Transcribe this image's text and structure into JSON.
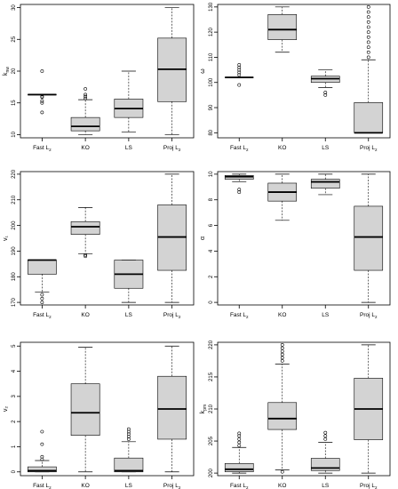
{
  "box_fill": "#d3d3d3",
  "chart_data": [
    {
      "type": "box",
      "ylabel": "k_nw",
      "ylim": [
        9.5,
        30.5
      ],
      "yticks": [
        10,
        15,
        20,
        25,
        30
      ],
      "categories": [
        "Fast L2",
        "KO",
        "LS",
        "Proj L2"
      ],
      "boxes": [
        {
          "whisker_low": 16.3,
          "q1": 16.3,
          "median": 16.3,
          "q3": 16.3,
          "whisker_high": 16.3,
          "outliers": [
            13.5,
            15,
            15.3,
            15.9,
            16.0,
            20.0
          ]
        },
        {
          "whisker_low": 10.0,
          "q1": 10.6,
          "median": 11.3,
          "q3": 12.7,
          "whisker_high": 15.5,
          "outliers": [
            15.7,
            16.0,
            16.3,
            17.2
          ]
        },
        {
          "whisker_low": 10.4,
          "q1": 12.7,
          "median": 14.1,
          "q3": 15.6,
          "whisker_high": 20.0,
          "outliers": []
        },
        {
          "whisker_low": 10.0,
          "q1": 15.2,
          "median": 20.3,
          "q3": 25.2,
          "whisker_high": 30.0,
          "outliers": []
        }
      ]
    },
    {
      "type": "box",
      "ylabel": "ω",
      "ylim": [
        78,
        131
      ],
      "yticks": [
        80,
        90,
        100,
        110,
        120,
        130
      ],
      "categories": [
        "Fast L2",
        "KO",
        "LS",
        "Proj L2"
      ],
      "boxes": [
        {
          "whisker_low": 102.0,
          "q1": 102.0,
          "median": 102.0,
          "q3": 102.0,
          "whisker_high": 102.0,
          "outliers": [
            99,
            103,
            104,
            105,
            106,
            107
          ]
        },
        {
          "whisker_low": 112.0,
          "q1": 117.0,
          "median": 121.0,
          "q3": 127.0,
          "whisker_high": 130.0,
          "outliers": []
        },
        {
          "whisker_low": 98.0,
          "q1": 100.0,
          "median": 101.5,
          "q3": 102.5,
          "whisker_high": 105.0,
          "outliers": [
            95,
            96
          ]
        },
        {
          "whisker_low": 80.0,
          "q1": 80.0,
          "median": 80.0,
          "q3": 92.0,
          "whisker_high": 109.0,
          "outliers": [
            110,
            112,
            114,
            116,
            118,
            120,
            122,
            124,
            126,
            128,
            130
          ]
        }
      ]
    },
    {
      "type": "box",
      "ylabel": "v₁",
      "ylim": [
        169,
        221
      ],
      "yticks": [
        170,
        180,
        190,
        200,
        210,
        220
      ],
      "categories": [
        "Fast L2",
        "KO",
        "LS",
        "Proj L2"
      ],
      "boxes": [
        {
          "whisker_low": 174.0,
          "q1": 181.0,
          "median": 186.5,
          "q3": 186.5,
          "whisker_high": 186.5,
          "outliers": [
            170,
            171.5,
            173
          ]
        },
        {
          "whisker_low": 189.0,
          "q1": 196.5,
          "median": 199.5,
          "q3": 201.5,
          "whisker_high": 207.0,
          "outliers": [
            188,
            188.5
          ]
        },
        {
          "whisker_low": 170.0,
          "q1": 175.5,
          "median": 181.0,
          "q3": 186.5,
          "whisker_high": 186.5,
          "outliers": []
        },
        {
          "whisker_low": 170.0,
          "q1": 182.5,
          "median": 195.5,
          "q3": 208.0,
          "whisker_high": 220.0,
          "outliers": []
        }
      ]
    },
    {
      "type": "box",
      "ylabel": "α",
      "ylim": [
        -0.2,
        10.2
      ],
      "yticks": [
        0,
        2,
        4,
        6,
        8,
        10
      ],
      "categories": [
        "Fast L2",
        "KO",
        "LS",
        "Proj L2"
      ],
      "boxes": [
        {
          "whisker_low": 9.4,
          "q1": 9.6,
          "median": 9.8,
          "q3": 9.9,
          "whisker_high": 10.0,
          "outliers": [
            8.6,
            8.8
          ]
        },
        {
          "whisker_low": 6.4,
          "q1": 7.9,
          "median": 8.6,
          "q3": 9.3,
          "whisker_high": 10.0,
          "outliers": []
        },
        {
          "whisker_low": 8.4,
          "q1": 8.9,
          "median": 9.4,
          "q3": 9.6,
          "whisker_high": 10.0,
          "outliers": []
        },
        {
          "whisker_low": 0.0,
          "q1": 2.5,
          "median": 5.1,
          "q3": 7.5,
          "whisker_high": 10.0,
          "outliers": []
        }
      ]
    },
    {
      "type": "box",
      "ylabel": "v₂",
      "ylim": [
        -0.15,
        5.15
      ],
      "yticks": [
        0,
        1,
        2,
        3,
        4,
        5
      ],
      "categories": [
        "Fast L2",
        "KO",
        "LS",
        "Proj L2"
      ],
      "boxes": [
        {
          "whisker_low": 0.0,
          "q1": 0.0,
          "median": 0.05,
          "q3": 0.2,
          "whisker_high": 0.45,
          "outliers": [
            0.5,
            0.6,
            1.1,
            1.6
          ]
        },
        {
          "whisker_low": 0.0,
          "q1": 1.45,
          "median": 2.35,
          "q3": 3.5,
          "whisker_high": 4.95,
          "outliers": []
        },
        {
          "whisker_low": 0.0,
          "q1": 0.0,
          "median": 0.05,
          "q3": 0.55,
          "whisker_high": 1.2,
          "outliers": [
            1.3,
            1.4,
            1.5,
            1.6,
            1.7
          ]
        },
        {
          "whisker_low": 0.0,
          "q1": 1.3,
          "median": 2.5,
          "q3": 3.8,
          "whisker_high": 5.0,
          "outliers": []
        }
      ]
    },
    {
      "type": "box",
      "ylabel": "k_pm",
      "ylim": [
        199.6,
        220.4
      ],
      "yticks": [
        200,
        205,
        210,
        215,
        220
      ],
      "categories": [
        "Fast L2",
        "KO",
        "LS",
        "Proj L2"
      ],
      "boxes": [
        {
          "whisker_low": 200.0,
          "q1": 200.2,
          "median": 200.6,
          "q3": 201.5,
          "whisker_high": 204.0,
          "outliers": [
            204.3,
            204.8,
            205.3,
            205.8,
            206.2
          ]
        },
        {
          "whisker_low": 200.5,
          "q1": 206.8,
          "median": 208.5,
          "q3": 211.0,
          "whisker_high": 217.0,
          "outliers": [
            200.2,
            217.5,
            218.0,
            218.5,
            219.0,
            219.5,
            220.0
          ]
        },
        {
          "whisker_low": 200.0,
          "q1": 200.4,
          "median": 200.8,
          "q3": 202.3,
          "whisker_high": 204.8,
          "outliers": [
            205.3,
            205.8,
            206.3
          ]
        },
        {
          "whisker_low": 200.0,
          "q1": 205.2,
          "median": 210.0,
          "q3": 214.8,
          "whisker_high": 220.0,
          "outliers": []
        }
      ]
    }
  ]
}
